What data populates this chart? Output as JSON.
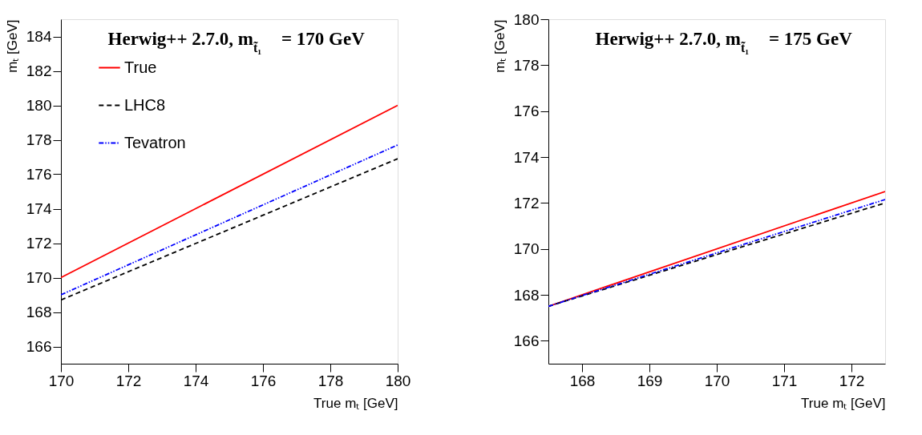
{
  "chart_data": [
    {
      "type": "line",
      "title": "Herwig++ 2.7.0, m$_{t̃₁}$ = 170 GeV",
      "xlabel": "True mₜ [GeV]",
      "ylabel": "mₜ [GeV]",
      "x": [
        170,
        180
      ],
      "series": [
        {
          "name": "True",
          "color": "#ff0000",
          "line_style": "solid",
          "values": [
            170,
            180
          ]
        },
        {
          "name": "LHC8",
          "color": "#000000",
          "line_style": "dashed",
          "values": [
            168.7,
            176.9
          ]
        },
        {
          "name": "Tevatron",
          "color": "#0000ff",
          "line_style": "dotted",
          "values": [
            169.0,
            177.7
          ]
        }
      ],
      "xlim": [
        170,
        180
      ],
      "xticks": [
        170,
        172,
        174,
        176,
        178,
        180
      ],
      "ylim": [
        165,
        185
      ],
      "yticks": [
        166,
        168,
        170,
        172,
        174,
        176,
        178,
        180,
        182,
        184
      ],
      "grid": false,
      "legend": "top left",
      "marker": "none"
    },
    {
      "type": "line",
      "title": "Herwig++ 2.7.0, m$_{t̃₁}$ = 175 GeV",
      "xlabel": "True mₜ [GeV]",
      "ylabel": "mₜ [GeV]",
      "x": [
        167.5,
        172.5
      ],
      "series": [
        {
          "name": "True",
          "color": "#ff0000",
          "line_style": "solid",
          "values": [
            167.5,
            172.5
          ]
        },
        {
          "name": "LHC8",
          "color": "#000000",
          "line_style": "dashed",
          "values": [
            167.5,
            172.0
          ]
        },
        {
          "name": "Tevatron",
          "color": "#0000ff",
          "line_style": "dotted",
          "values": [
            167.5,
            172.15
          ]
        }
      ],
      "xlim": [
        167.5,
        172.5
      ],
      "xticks": [
        168,
        169,
        170,
        171,
        172
      ],
      "ylim": [
        165,
        180
      ],
      "yticks": [
        166,
        168,
        170,
        172,
        174,
        176,
        178,
        180
      ],
      "grid": false,
      "legend": "top left",
      "marker": "none"
    }
  ]
}
